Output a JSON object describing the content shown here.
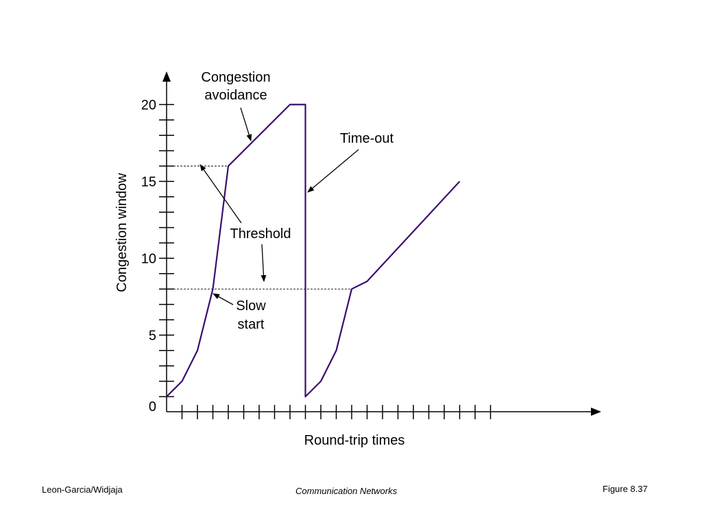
{
  "chart_data": {
    "type": "line",
    "xlabel": "Round-trip times",
    "ylabel": "Congestion window",
    "y_ticks": [
      "0",
      "5",
      "10",
      "15",
      "20"
    ],
    "ylim": [
      0,
      20
    ],
    "xlim": [
      0,
      28
    ],
    "x_tick_count": 21,
    "y_minor_step": 1,
    "series": [
      {
        "color": "#3b0a6e",
        "x": [
          0,
          1,
          2,
          3,
          4,
          8,
          9,
          9,
          10,
          11,
          12,
          13,
          19
        ],
        "y": [
          1,
          2,
          4,
          8,
          16,
          20,
          20,
          1,
          2,
          4,
          8,
          8.5,
          15
        ]
      }
    ],
    "threshold_lines": [
      {
        "y": 16,
        "x_end": 4
      },
      {
        "y": 8,
        "x_end": 12
      }
    ],
    "annotations": [
      {
        "lines": [
          "Congestion",
          "avoidance"
        ]
      },
      {
        "lines": [
          "Time-out"
        ]
      },
      {
        "lines": [
          "Threshold"
        ]
      },
      {
        "lines": [
          "Slow",
          "start"
        ]
      }
    ]
  },
  "footer": {
    "left": "Leon-Garcia/Widjaja",
    "center": "Communication Networks",
    "right": "Figure 8.37"
  }
}
